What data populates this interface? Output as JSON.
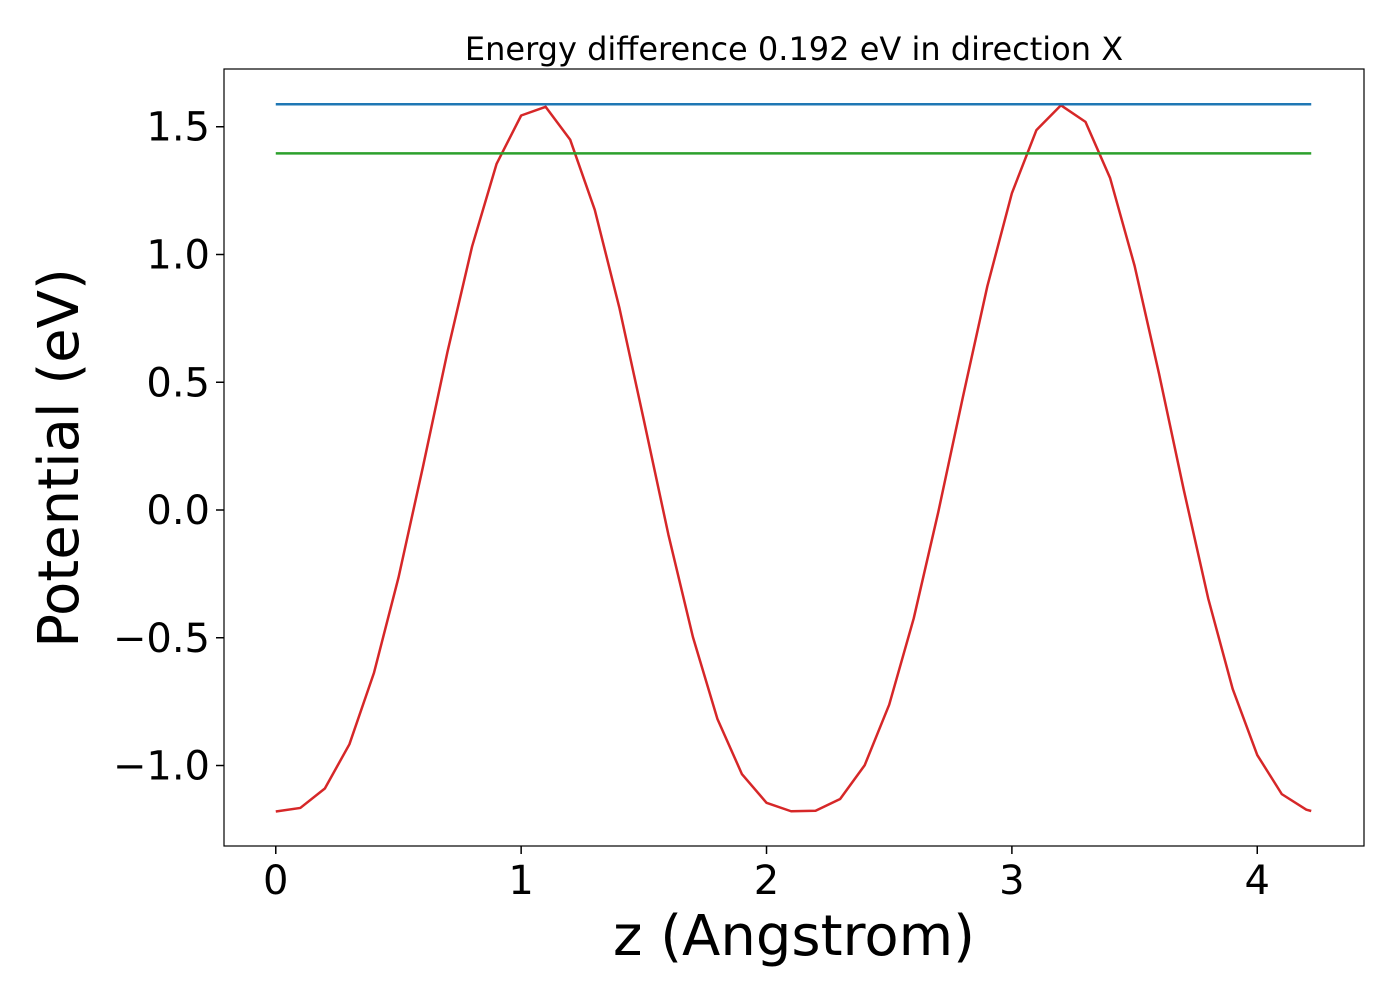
{
  "chart_data": {
    "type": "line",
    "title": "Energy difference 0.192 eV in direction X",
    "x_label": "z (Angstrom)",
    "y_label": "Potential (eV)",
    "xlim": [
      -0.211,
      4.435
    ],
    "ylim": [
      -1.315,
      1.726
    ],
    "xticks": [
      0,
      1,
      2,
      3,
      4
    ],
    "yticks": [
      {
        "value": -1.0,
        "label": "−1.0"
      },
      {
        "value": -0.5,
        "label": "−0.5"
      },
      {
        "value": 0.0,
        "label": "0.0"
      },
      0.5,
      {
        "value": 1.0,
        "label": "1.0"
      },
      1.5
    ],
    "grid": false,
    "series": [
      {
        "color": "#d62728",
        "x": [
          0,
          0.1,
          0.2,
          0.3,
          0.4,
          0.5,
          0.6,
          0.7,
          0.8,
          0.9,
          1.0,
          1.1,
          1.2,
          1.3,
          1.4,
          1.5,
          1.6,
          1.7,
          1.8,
          1.9,
          2.0,
          2.1,
          2.2,
          2.3,
          2.4,
          2.5,
          2.6,
          2.7,
          2.8,
          2.9,
          3.0,
          3.1,
          3.2,
          3.3,
          3.4,
          3.5,
          3.6,
          3.7,
          3.8,
          3.9,
          4.0,
          4.1,
          4.2,
          4.22
        ],
        "values": [
          -1.18,
          -1.166,
          -1.09,
          -0.917,
          -0.638,
          -0.265,
          0.17,
          0.62,
          1.031,
          1.355,
          1.544,
          1.578,
          1.449,
          1.175,
          0.793,
          0.352,
          -0.096,
          -0.497,
          -0.818,
          -1.034,
          -1.146,
          -1.179,
          -1.177,
          -1.131,
          -0.999,
          -0.762,
          -0.424,
          -0.008,
          0.441,
          0.876,
          1.24,
          1.487,
          1.584,
          1.519,
          1.3,
          0.956,
          0.532,
          0.081,
          -0.346,
          -0.701,
          -0.959,
          -1.112,
          -1.173,
          -1.178
        ]
      },
      {
        "color": "#1f77b4",
        "x": [
          0,
          4.22
        ],
        "values": [
          1.588,
          1.588
        ]
      },
      {
        "color": "#2ca02c",
        "x": [
          0,
          4.22
        ],
        "values": [
          1.396,
          1.396
        ]
      }
    ]
  }
}
